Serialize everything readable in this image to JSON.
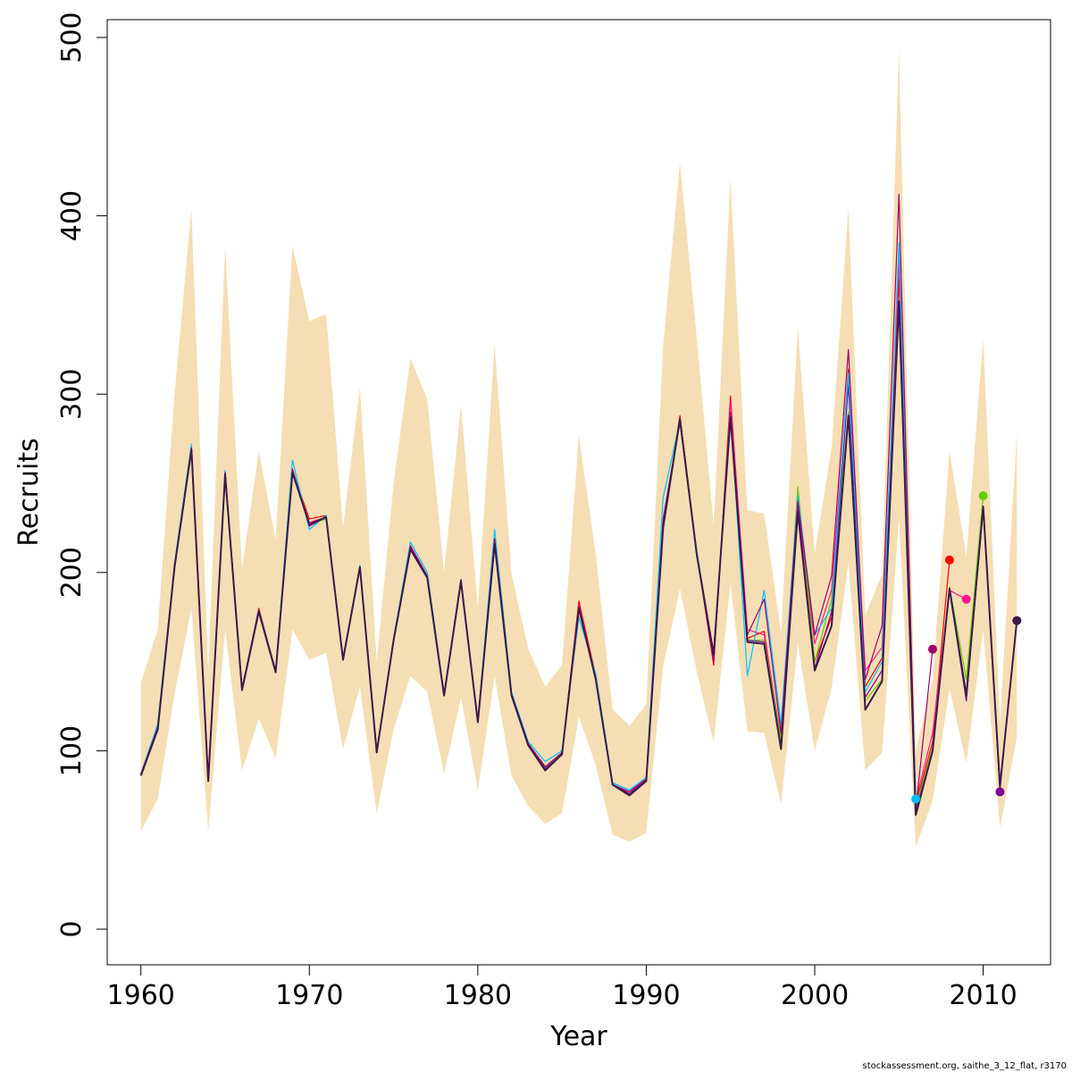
{
  "chart_data": {
    "type": "line",
    "xlabel": "Year",
    "ylabel": "Recruits",
    "xlim": [
      1958,
      2014
    ],
    "ylim": [
      -20,
      510
    ],
    "x_ticks": [
      1960,
      1970,
      1980,
      1990,
      2000,
      2010
    ],
    "y_ticks": [
      0,
      100,
      200,
      300,
      400,
      500
    ],
    "grid": false,
    "legend": "none",
    "band_color": "#f5deb3",
    "footer": "stockassessment.org, saithe_3_12_flat, r3170",
    "band": {
      "x": [
        1960,
        1961,
        1962,
        1963,
        1964,
        1965,
        1966,
        1967,
        1968,
        1969,
        1970,
        1971,
        1972,
        1973,
        1974,
        1975,
        1976,
        1977,
        1978,
        1979,
        1980,
        1981,
        1982,
        1983,
        1984,
        1985,
        1986,
        1987,
        1988,
        1989,
        1990,
        1991,
        1992,
        1993,
        1994,
        1995,
        1996,
        1997,
        1998,
        1999,
        2000,
        2001,
        2002,
        2003,
        2004,
        2005,
        2006,
        2007,
        2008,
        2009,
        2010,
        2011,
        2012
      ],
      "upper": [
        138,
        168,
        300,
        404,
        145,
        383,
        202,
        268,
        218,
        383,
        341,
        345,
        225,
        304,
        150,
        250,
        320,
        297,
        200,
        294,
        180,
        328,
        199,
        157,
        136,
        148,
        277,
        210,
        123,
        114,
        126,
        327,
        430,
        331,
        226,
        421,
        235,
        233,
        166,
        337,
        210,
        270,
        404,
        176,
        199,
        493,
        100,
        140,
        268,
        209,
        331,
        116,
        278
      ],
      "lower": [
        55,
        73,
        132,
        180,
        55,
        168,
        89,
        118,
        96,
        168,
        151,
        155,
        101,
        136,
        65,
        112,
        142,
        133,
        87,
        130,
        78,
        142,
        86,
        69,
        59,
        65,
        119,
        92,
        53,
        49,
        54,
        147,
        191,
        144,
        105,
        194,
        111,
        110,
        70,
        160,
        100,
        135,
        205,
        89,
        99,
        230,
        46,
        72,
        135,
        93,
        168,
        57,
        108
      ]
    },
    "series": [
      {
        "color": "#ff0000",
        "end_year": 2008,
        "values": [
          87,
          114,
          205,
          268,
          84,
          256,
          134,
          180,
          144,
          257,
          230,
          232,
          151,
          204,
          99,
          163,
          214,
          198,
          131,
          196,
          116,
          217,
          132,
          104,
          91,
          99,
          184,
          142,
          81,
          77,
          85,
          225,
          288,
          211,
          148,
          299,
          163,
          167,
          104,
          236,
          150,
          175,
          314,
          136,
          152,
          365,
          70,
          105,
          207
        ]
      },
      {
        "color": "#ff1493",
        "end_year": 2009,
        "values": [
          87,
          113,
          204,
          269,
          84,
          256,
          135,
          179,
          145,
          257,
          228,
          231,
          152,
          203,
          100,
          162,
          215,
          198,
          132,
          195,
          117,
          216,
          132,
          103,
          91,
          98,
          182,
          141,
          82,
          78,
          84,
          226,
          286,
          210,
          150,
          296,
          168,
          165,
          107,
          238,
          160,
          190,
          310,
          145,
          158,
          375,
          72,
          110,
          190,
          185
        ]
      },
      {
        "color": "#66cc00",
        "end_year": 2010,
        "values": [
          87,
          112,
          203,
          270,
          83,
          255,
          134,
          178,
          145,
          258,
          227,
          230,
          151,
          203,
          99,
          163,
          214,
          197,
          132,
          196,
          116,
          218,
          131,
          104,
          91,
          98,
          180,
          140,
          81,
          77,
          84,
          228,
          284,
          209,
          152,
          290,
          162,
          162,
          106,
          248,
          150,
          185,
          290,
          128,
          140,
          352,
          68,
          102,
          192,
          140,
          243
        ]
      },
      {
        "color": "#7b0099",
        "end_year": 2011,
        "values": [
          87,
          113,
          204,
          270,
          84,
          256,
          135,
          179,
          144,
          257,
          226,
          231,
          151,
          203,
          99,
          162,
          214,
          197,
          131,
          196,
          116,
          216,
          131,
          103,
          90,
          98,
          181,
          140,
          81,
          76,
          84,
          226,
          285,
          210,
          153,
          288,
          162,
          161,
          102,
          236,
          146,
          178,
          305,
          130,
          145,
          350,
          66,
          100,
          190,
          128,
          236,
          77
        ]
      },
      {
        "color": "#00bfff",
        "end_year": 2006,
        "values": [
          87,
          115,
          205,
          272,
          84,
          257,
          135,
          179,
          145,
          263,
          224,
          232,
          152,
          204,
          100,
          163,
          217,
          200,
          132,
          196,
          117,
          224,
          133,
          105,
          94,
          100,
          175,
          143,
          82,
          78,
          85,
          242,
          285,
          212,
          153,
          290,
          142,
          190,
          115,
          243,
          165,
          180,
          312,
          133,
          150,
          385,
          73
        ]
      },
      {
        "color": "#a0006e",
        "end_year": 2007,
        "values": [
          87,
          113,
          204,
          270,
          84,
          256,
          135,
          179,
          145,
          258,
          226,
          231,
          152,
          203,
          100,
          162,
          215,
          198,
          132,
          196,
          116,
          219,
          132,
          104,
          91,
          99,
          180,
          141,
          81,
          77,
          84,
          230,
          285,
          210,
          150,
          290,
          165,
          185,
          110,
          240,
          165,
          198,
          325,
          140,
          170,
          412,
          67,
          157
        ]
      },
      {
        "color": "#3a1a4a",
        "end_year": 2012,
        "values": [
          86,
          112,
          203,
          269,
          83,
          255,
          134,
          178,
          144,
          256,
          227,
          231,
          151,
          203,
          99,
          162,
          213,
          197,
          131,
          195,
          116,
          216,
          131,
          103,
          89,
          98,
          180,
          140,
          81,
          75,
          83,
          225,
          286,
          210,
          154,
          287,
          161,
          160,
          101,
          234,
          145,
          170,
          288,
          123,
          139,
          352,
          64,
          100,
          191,
          131,
          237,
          80,
          173
        ]
      }
    ]
  }
}
